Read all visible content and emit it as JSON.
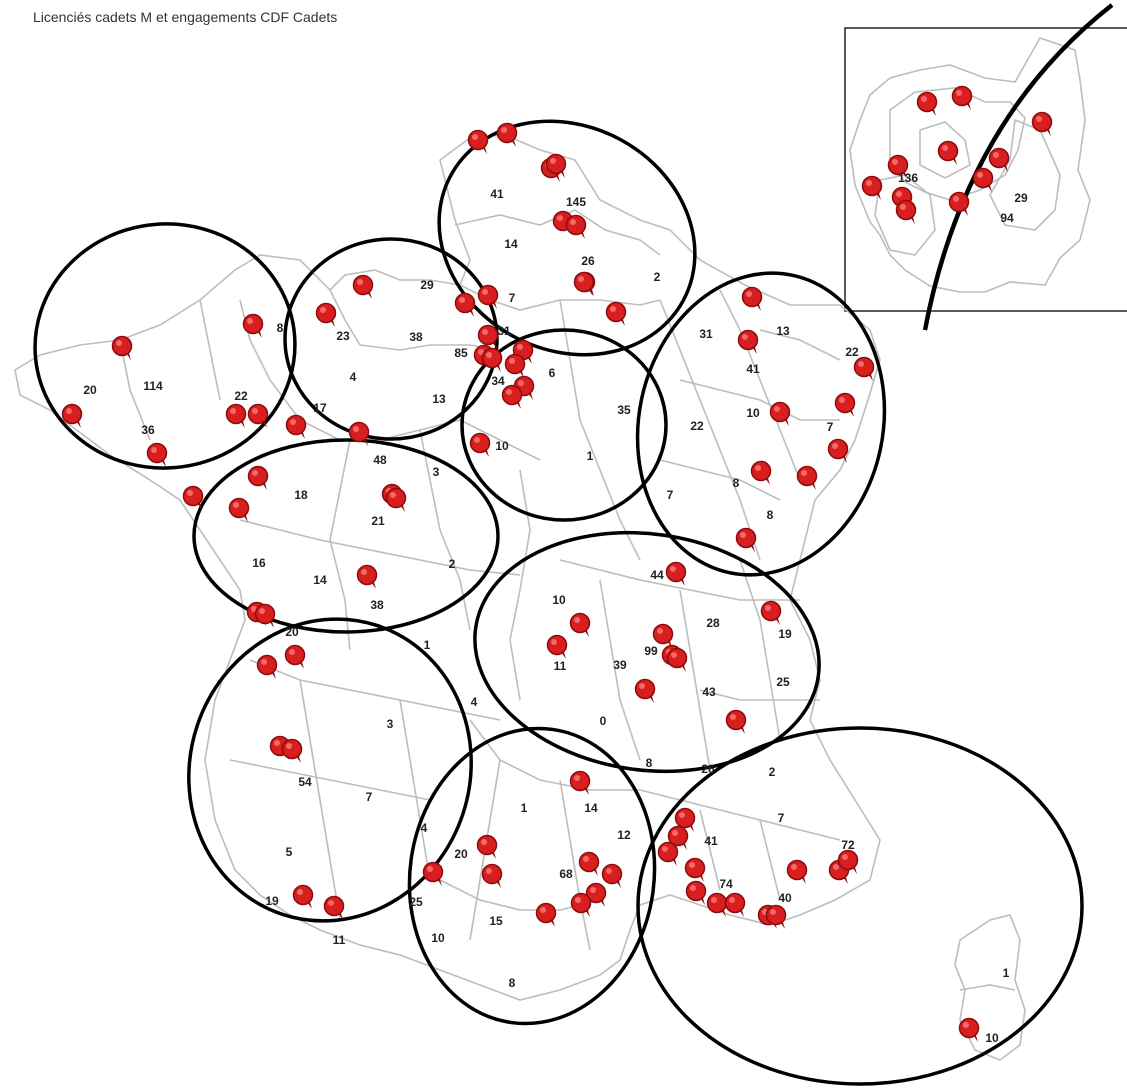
{
  "title": "Licenciés cadets M et engagements CDF Cadets",
  "colors": {
    "marker": "#d81e1e",
    "marker_dark": "#8a0d0d",
    "border": "#bdbdbd",
    "zone": "#000000"
  },
  "marker_icon": "map-pin-icon",
  "map_labels": [
    "41",
    "145",
    "14",
    "26",
    "2",
    "29",
    "7",
    "8",
    "23",
    "38",
    "31",
    "85",
    "4",
    "13",
    "17",
    "20",
    "114",
    "22",
    "36",
    "34",
    "6",
    "35",
    "10",
    "1",
    "31",
    "13",
    "41",
    "22",
    "10",
    "7",
    "22",
    "8",
    "7",
    "8",
    "48",
    "3",
    "18",
    "21",
    "16",
    "14",
    "2",
    "38",
    "20",
    "10",
    "44",
    "28",
    "19",
    "11",
    "39",
    "99",
    "25",
    "43",
    "0",
    "4",
    "1",
    "3",
    "54",
    "7",
    "5",
    "4",
    "19",
    "11",
    "26",
    "8",
    "2",
    "1",
    "14",
    "12",
    "41",
    "7",
    "20",
    "68",
    "72",
    "74",
    "40",
    "25",
    "15",
    "10",
    "8",
    "1",
    "10",
    "29",
    "136",
    "94"
  ]
}
